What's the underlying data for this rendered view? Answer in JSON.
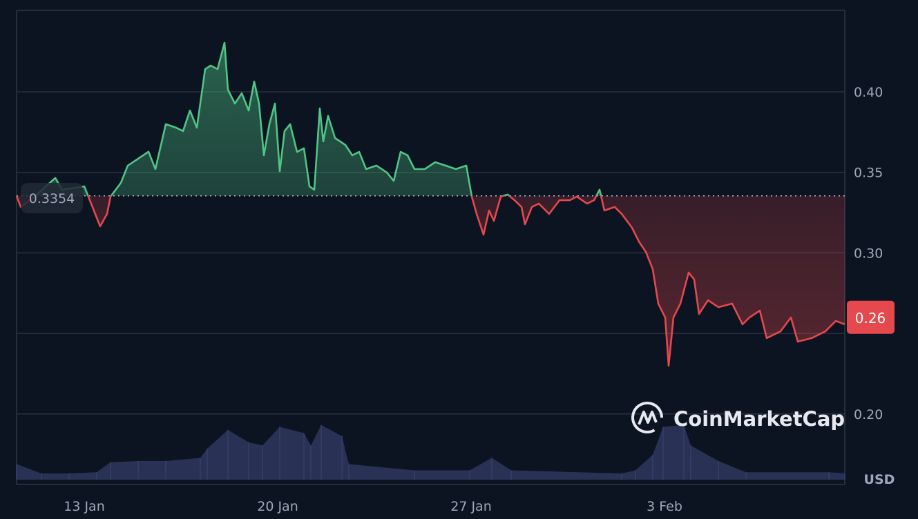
{
  "chart_data": {
    "type": "line",
    "title": "",
    "xlabel": "",
    "ylabel": "",
    "currency_label": "USD",
    "watermark": "CoinMarketCap",
    "ylim": [
      0.16,
      0.445
    ],
    "y_ticks": [
      "0.40",
      "0.35",
      "0.30",
      "0.20"
    ],
    "x_ticks": [
      {
        "label": "13 Jan",
        "date": "01-13T00:00"
      },
      {
        "label": "20 Jan",
        "date": "01-20T00:00"
      },
      {
        "label": "27 Jan",
        "date": "01-27T00:00"
      },
      {
        "label": "3 Feb",
        "date": "02-03T00:00"
      }
    ],
    "grid": true,
    "baseline": {
      "value": 0.3354,
      "label": "0.3354"
    },
    "current_price": {
      "value": 0.26,
      "label": "0.26"
    },
    "colors": {
      "up": "#4fc586",
      "down": "#e5484d",
      "volume": "#2b3458",
      "grid": "#262d3b",
      "background": "#0d1421"
    },
    "price": [
      [
        "01-10T13:12",
        0.3353
      ],
      [
        "01-10T16:48",
        0.3285
      ],
      [
        "01-11T04:48",
        0.3349
      ],
      [
        "01-11T22:48",
        0.3465
      ],
      [
        "01-12T04:48",
        0.3392
      ],
      [
        "01-12T16:48",
        0.3405
      ],
      [
        "01-13T00:00",
        0.3413
      ],
      [
        "01-13T04:48",
        0.3327
      ],
      [
        "01-13T13:48",
        0.3165
      ],
      [
        "01-13T19:48",
        0.3242
      ],
      [
        "01-13T22:48",
        0.3349
      ],
      [
        "01-14T07:48",
        0.3435
      ],
      [
        "01-14T13:48",
        0.3542
      ],
      [
        "01-14T22:48",
        0.3585
      ],
      [
        "01-15T07:48",
        0.3628
      ],
      [
        "01-15T13:48",
        0.352
      ],
      [
        "01-15T22:48",
        0.3799
      ],
      [
        "01-16T07:48",
        0.3777
      ],
      [
        "01-16T13:48",
        0.3756
      ],
      [
        "01-16T19:48",
        0.3884
      ],
      [
        "01-17T01:48",
        0.3777
      ],
      [
        "01-17T09:00",
        0.4141
      ],
      [
        "01-17T13:48",
        0.4163
      ],
      [
        "01-17T19:48",
        0.4141
      ],
      [
        "01-18T01:48",
        0.4304
      ],
      [
        "01-18T04:48",
        0.4013
      ],
      [
        "01-18T10:48",
        0.3927
      ],
      [
        "01-18T16:48",
        0.3991
      ],
      [
        "01-18T22:48",
        0.3884
      ],
      [
        "01-19T03:36",
        0.4064
      ],
      [
        "01-19T07:48",
        0.3927
      ],
      [
        "01-19T12:00",
        0.3606
      ],
      [
        "01-19T16:48",
        0.3799
      ],
      [
        "01-19T21:36",
        0.3927
      ],
      [
        "01-20T01:48",
        0.3507
      ],
      [
        "01-20T06:00",
        0.3756
      ],
      [
        "01-20T10:48",
        0.3799
      ],
      [
        "01-20T16:48",
        0.3627
      ],
      [
        "01-20T22:48",
        0.3649
      ],
      [
        "01-21T03:36",
        0.3413
      ],
      [
        "01-21T07:48",
        0.3392
      ],
      [
        "01-21T12:36",
        0.3897
      ],
      [
        "01-21T15:36",
        0.3692
      ],
      [
        "01-21T19:48",
        0.385
      ],
      [
        "01-22T01:48",
        0.3713
      ],
      [
        "01-22T10:48",
        0.367
      ],
      [
        "01-22T16:48",
        0.3606
      ],
      [
        "01-22T22:48",
        0.3627
      ],
      [
        "01-23T04:48",
        0.352
      ],
      [
        "01-23T13:48",
        0.3542
      ],
      [
        "01-23T22:48",
        0.3499
      ],
      [
        "01-24T04:48",
        0.3447
      ],
      [
        "01-24T10:48",
        0.3627
      ],
      [
        "01-24T16:48",
        0.3606
      ],
      [
        "01-24T22:48",
        0.352
      ],
      [
        "01-25T07:48",
        0.352
      ],
      [
        "01-25T16:48",
        0.3563
      ],
      [
        "01-26T01:48",
        0.3542
      ],
      [
        "01-26T10:48",
        0.352
      ],
      [
        "01-26T19:48",
        0.3542
      ],
      [
        "01-27T00:36",
        0.3349
      ],
      [
        "01-27T04:48",
        0.3242
      ],
      [
        "01-27T10:48",
        0.3113
      ],
      [
        "01-27T15:36",
        0.3263
      ],
      [
        "01-27T19:48",
        0.3199
      ],
      [
        "01-28T01:48",
        0.3349
      ],
      [
        "01-28T07:48",
        0.3362
      ],
      [
        "01-28T13:48",
        0.3327
      ],
      [
        "01-28T19:48",
        0.3285
      ],
      [
        "01-28T22:48",
        0.3177
      ],
      [
        "01-29T04:48",
        0.3285
      ],
      [
        "01-29T10:48",
        0.3306
      ],
      [
        "01-29T19:48",
        0.3242
      ],
      [
        "01-30T04:48",
        0.3327
      ],
      [
        "01-30T13:48",
        0.3327
      ],
      [
        "01-30T19:48",
        0.3349
      ],
      [
        "01-31T04:48",
        0.3306
      ],
      [
        "01-31T10:48",
        0.3327
      ],
      [
        "01-31T15:36",
        0.3392
      ],
      [
        "01-31T19:48",
        0.3263
      ],
      [
        "02-01T04:48",
        0.3285
      ],
      [
        "02-01T10:48",
        0.3242
      ],
      [
        "02-01T19:48",
        0.3156
      ],
      [
        "02-02T01:48",
        0.307
      ],
      [
        "02-02T07:48",
        0.3006
      ],
      [
        "02-02T13:48",
        0.2899
      ],
      [
        "02-02T18:36",
        0.2685
      ],
      [
        "02-03T00:36",
        0.2599
      ],
      [
        "02-03T03:36",
        0.2299
      ],
      [
        "02-03T07:48",
        0.2599
      ],
      [
        "02-03T13:48",
        0.2685
      ],
      [
        "02-03T21:00",
        0.2878
      ],
      [
        "02-04T01:48",
        0.2835
      ],
      [
        "02-04T06:00",
        0.2621
      ],
      [
        "02-04T13:48",
        0.2706
      ],
      [
        "02-04T22:48",
        0.2663
      ],
      [
        "02-05T10:48",
        0.2685
      ],
      [
        "02-05T19:48",
        0.2556
      ],
      [
        "02-06T01:48",
        0.2599
      ],
      [
        "02-06T10:48",
        0.2642
      ],
      [
        "02-06T16:48",
        0.2471
      ],
      [
        "02-07T04:48",
        0.2513
      ],
      [
        "02-07T13:48",
        0.2599
      ],
      [
        "02-07T19:48",
        0.2449
      ],
      [
        "02-08T07:48",
        0.2471
      ],
      [
        "02-08T19:48",
        0.2513
      ],
      [
        "02-09T04:48",
        0.2578
      ],
      [
        "02-09T12:36",
        0.2556
      ]
    ],
    "volume_relative": [
      [
        "01-10T13:12",
        25
      ],
      [
        "01-11T10:48",
        10
      ],
      [
        "01-12T10:48",
        10
      ],
      [
        "01-13T10:48",
        12
      ],
      [
        "01-13T22:48",
        28
      ],
      [
        "01-14T22:48",
        30
      ],
      [
        "01-15T22:48",
        30
      ],
      [
        "01-17T04:48",
        35
      ],
      [
        "01-17T10:48",
        50
      ],
      [
        "01-18T04:48",
        80
      ],
      [
        "01-18T22:48",
        60
      ],
      [
        "01-19T10:48",
        55
      ],
      [
        "01-20T01:48",
        85
      ],
      [
        "01-20T22:48",
        75
      ],
      [
        "01-21T04:48",
        55
      ],
      [
        "01-21T13:48",
        88
      ],
      [
        "01-22T07:48",
        70
      ],
      [
        "01-22T13:48",
        25
      ],
      [
        "01-24T22:48",
        15
      ],
      [
        "01-26T22:48",
        15
      ],
      [
        "01-27T18:00",
        35
      ],
      [
        "01-28T10:48",
        15
      ],
      [
        "02-01T10:48",
        10
      ],
      [
        "02-01T22:48",
        15
      ],
      [
        "02-02T13:48",
        40
      ],
      [
        "02-02T22:48",
        85
      ],
      [
        "02-03T16:48",
        88
      ],
      [
        "02-03T22:48",
        55
      ],
      [
        "02-04T22:48",
        30
      ],
      [
        "02-05T22:48",
        12
      ],
      [
        "02-08T22:48",
        12
      ],
      [
        "02-09T12:36",
        10
      ]
    ]
  }
}
